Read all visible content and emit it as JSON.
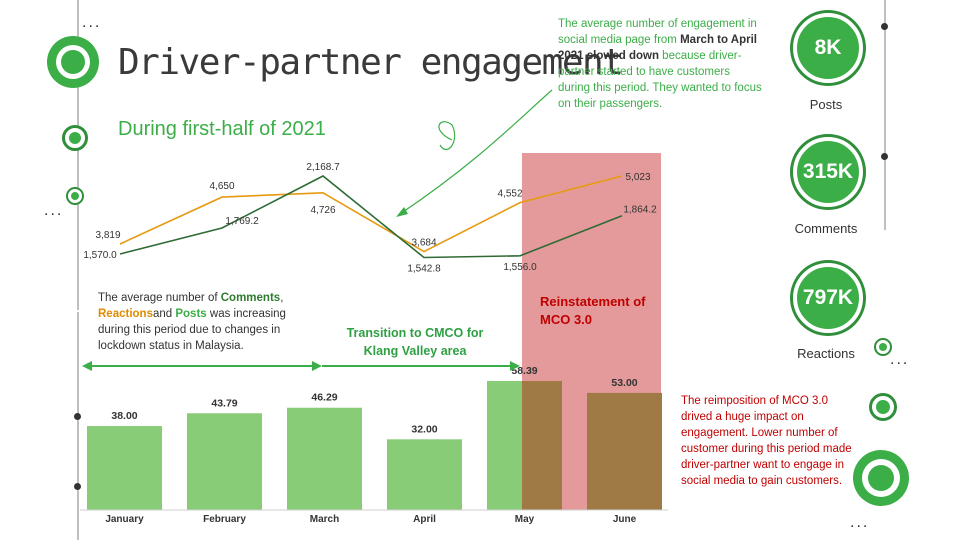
{
  "header": {
    "title": "Driver-partner engagement",
    "subtitle": "During first-half of 2021"
  },
  "notes": {
    "top_pre": "The average number of engagement in social media page from ",
    "top_bold": "March to April 2021 slowed down",
    "top_post": " because driver-partner started to have customers during this period. They wanted to focus on their passengers.",
    "left_pre": "The average number of ",
    "left_comments": "Comments",
    "left_comma": ",",
    "left_reactions": "Reactions",
    "left_and": "and ",
    "left_posts": "Posts",
    "left_post": " was increasing during this period due to changes in lockdown status   in Malaysia.",
    "right": "The reimposition of MCO 3.0 drived a huge impact on engagement. Lower number of customer during this period made driver-partner want to engage in social media to gain customers."
  },
  "annotations": {
    "transition": "Transition to CMCO for Klang Valley area",
    "reinstatement": "Reinstatement of MCO 3.0"
  },
  "stats": [
    {
      "value": "8K",
      "label": "Posts"
    },
    {
      "value": "315K",
      "label": "Comments"
    },
    {
      "value": "797K",
      "label": "Reactions"
    }
  ],
  "colors": {
    "bar": "#88cc78",
    "comments_line": "#2f6b35",
    "reactions_line": "#e69a10",
    "highlight": "#e49a9a",
    "accent": "#3cae48"
  },
  "chart_data": {
    "type": "bar",
    "categories": [
      "January",
      "February",
      "March",
      "April",
      "May",
      "June"
    ],
    "series": [
      {
        "values": [
          38.0,
          43.79,
          46.29,
          32.0,
          58.39,
          53.0
        ],
        "labels": [
          "38.00",
          "43.79",
          "46.29",
          "32.00",
          "58.39",
          "53.00"
        ]
      },
      {
        "type": "line",
        "values": [
          1570.0,
          1769.2,
          2168.7,
          1542.8,
          1556.0,
          1864.2
        ],
        "labels": [
          "1,570.0",
          "1,769.2",
          "2,168.7",
          "1,542.8",
          "1,556.0",
          "1,864.2"
        ]
      },
      {
        "type": "line",
        "values": [
          3819,
          4650,
          4726,
          3684,
          4552,
          5023
        ],
        "labels": [
          "3,819",
          "4,650",
          "4,726",
          "3,684",
          "4,552",
          "5,023"
        ]
      }
    ],
    "highlight_categories": [
      "May",
      "June"
    ]
  }
}
